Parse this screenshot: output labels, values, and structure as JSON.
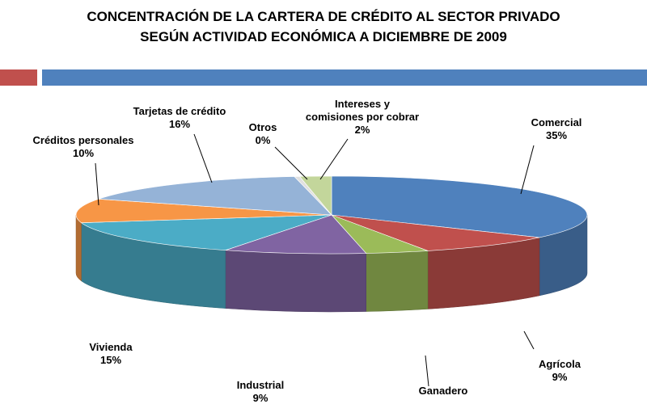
{
  "title": {
    "line1": "CONCENTRACIÓN DE LA CARTERA DE CRÉDITO AL SECTOR PRIVADO",
    "line2": "SEGÚN ACTIVIDAD ECONÓMICA A DICIEMBRE DE 2009"
  },
  "colors": {
    "accent_red": "#c0504d",
    "accent_blue": "#4f81bd"
  },
  "chart_data": {
    "type": "pie",
    "style": "3d-exploded-tilted",
    "title": "CONCENTRACIÓN DE LA CARTERA DE CRÉDITO AL SECTOR PRIVADO SEGÚN ACTIVIDAD ECONÓMICA A DICIEMBRE DE 2009",
    "legend": "none",
    "slices": [
      {
        "label": "Comercial",
        "value": 35,
        "display": "35%",
        "color": "#4f81bd"
      },
      {
        "label": "Agrícola",
        "value": 9,
        "display": "9%",
        "color": "#c0504d"
      },
      {
        "label": "Ganadero",
        "value": 4,
        "display": "",
        "color": "#9bbb59"
      },
      {
        "label": "Industrial",
        "value": 9,
        "display": "9%",
        "color": "#8064a2"
      },
      {
        "label": "Vivienda",
        "value": 15,
        "display": "15%",
        "color": "#4bacc6"
      },
      {
        "label": "Créditos personales",
        "value": 10,
        "display": "10%",
        "color": "#f79646"
      },
      {
        "label": "Tarjetas de crédito",
        "value": 16,
        "display": "16%",
        "color": "#95b3d7"
      },
      {
        "label": "Otros",
        "value": 0,
        "display": "0%",
        "color": "#e0e0e0"
      },
      {
        "label": "Intereses y comisiones por cobrar",
        "value": 2,
        "display": "2%",
        "color": "#c3d69b"
      }
    ]
  }
}
